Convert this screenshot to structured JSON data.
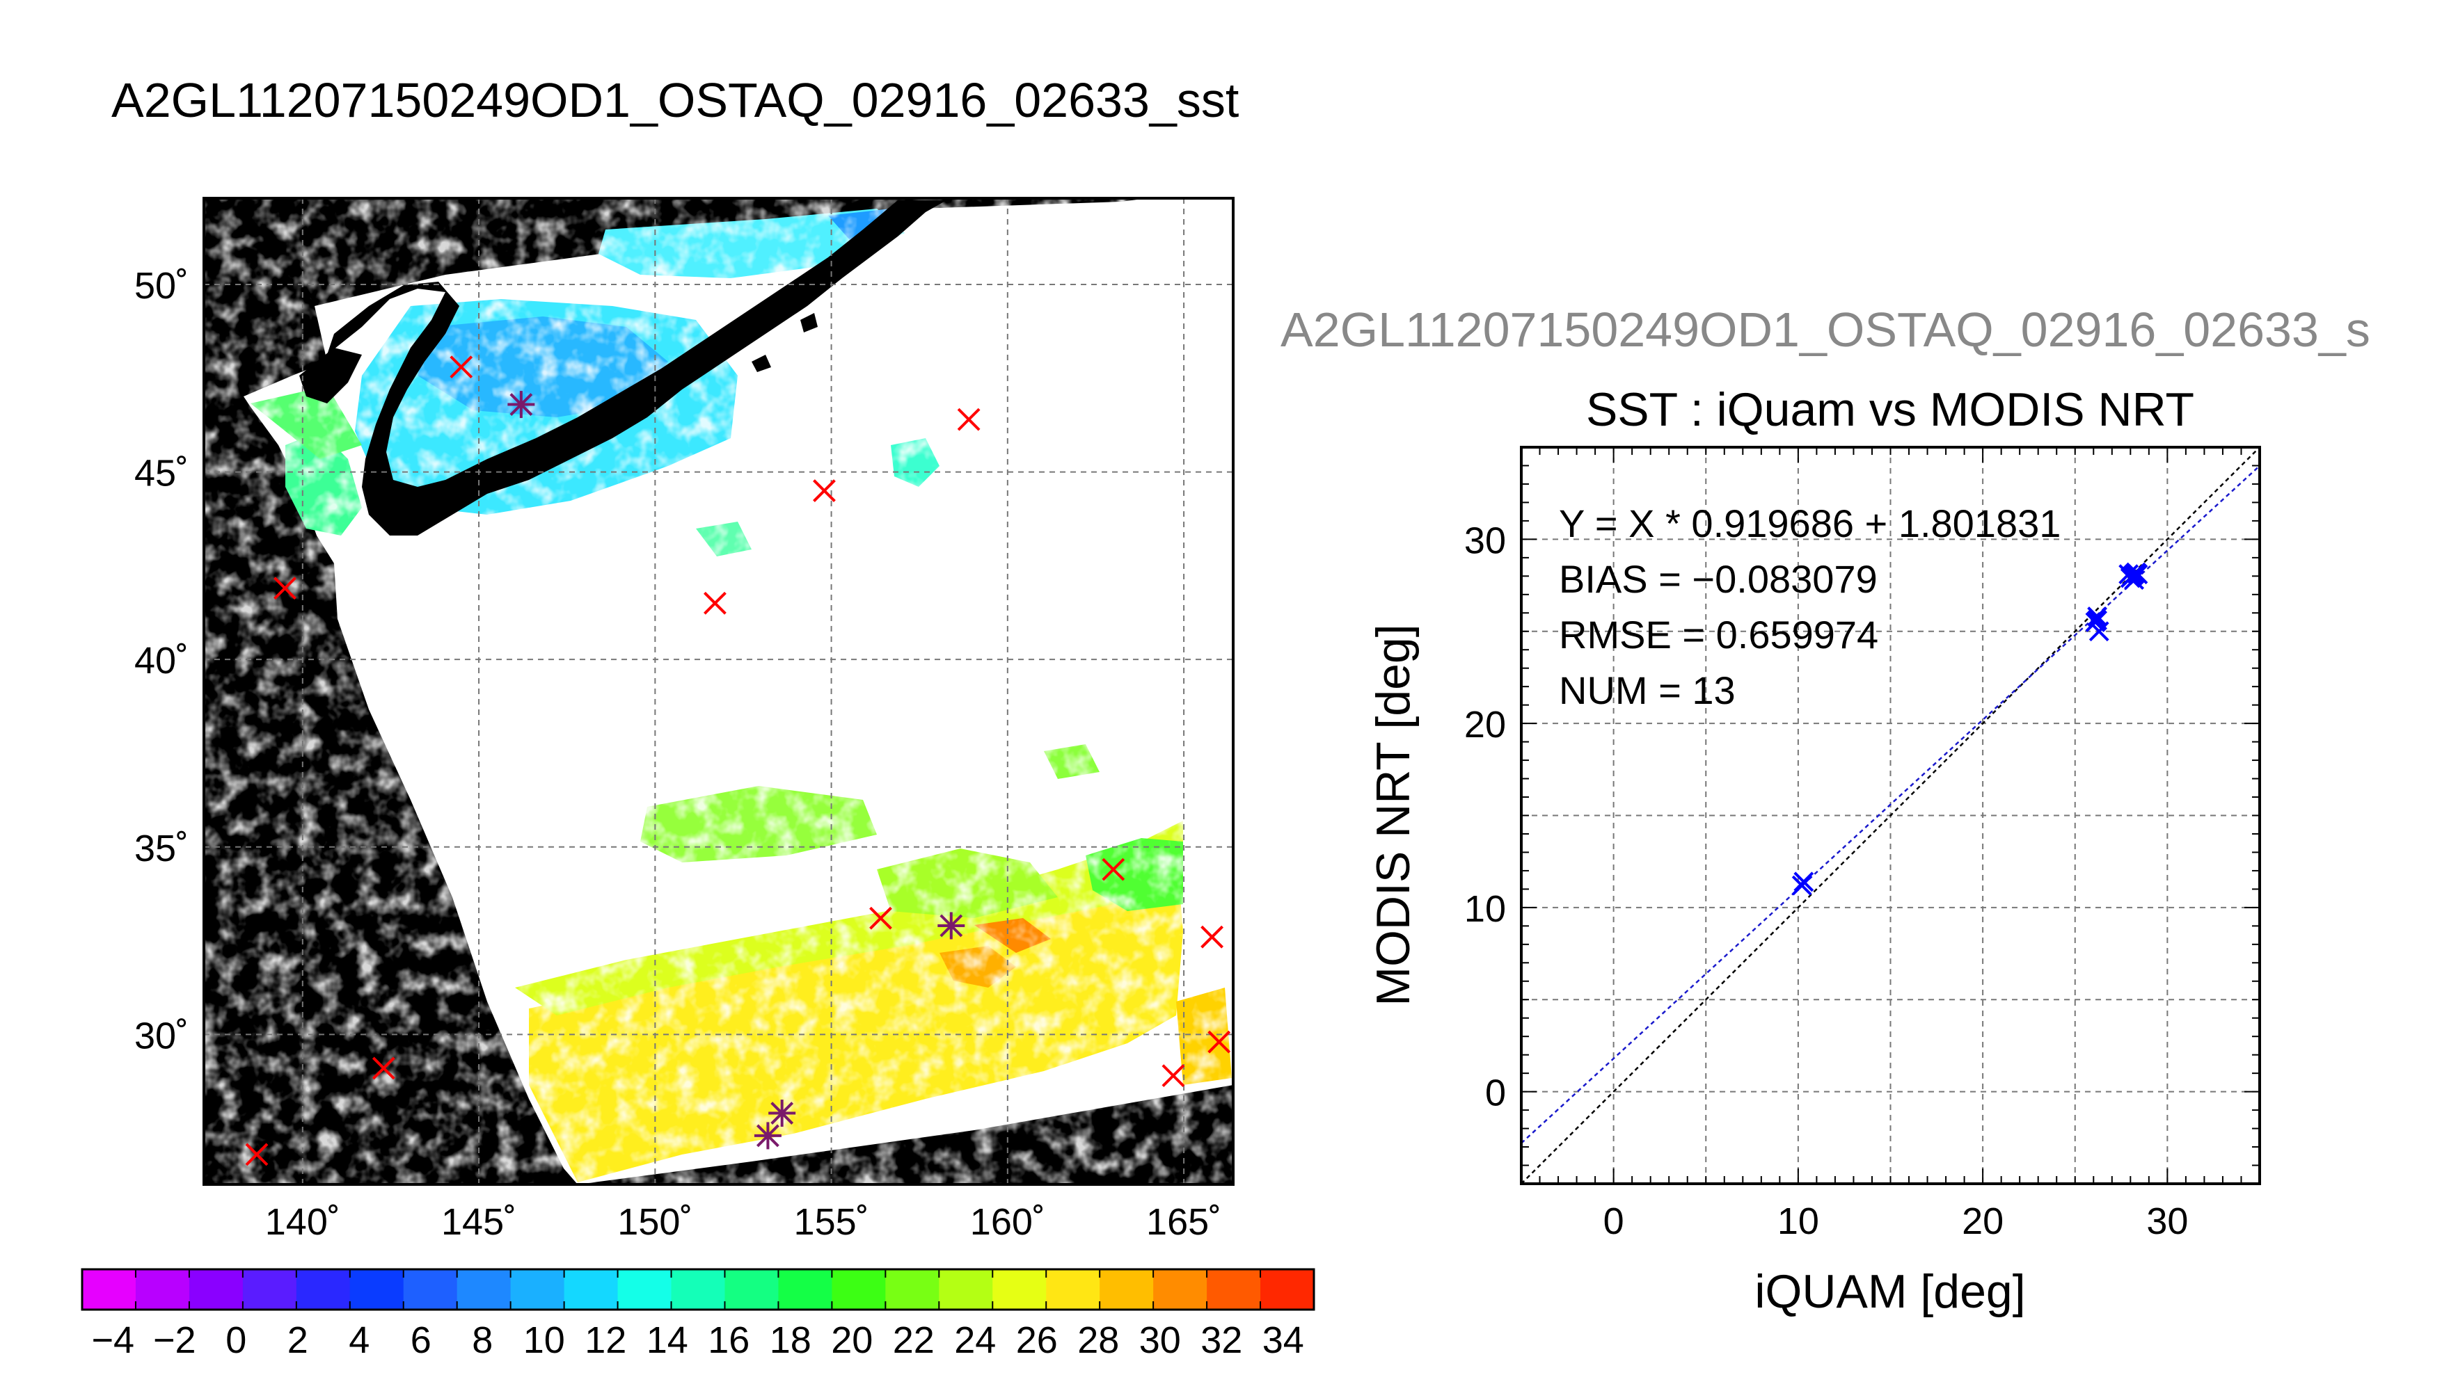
{
  "page": {
    "main_title": "A2GL11207150249OD1_OSTAQ_02916_02633_sst",
    "scatter_header": "A2GL11207150249OD1_OSTAQ_02916_02633_s"
  },
  "chart_data": [
    {
      "type": "heatmap",
      "title": "",
      "xlabel": "",
      "ylabel": "",
      "x_ticks": [
        "140˚",
        "145˚",
        "150˚",
        "155˚",
        "160˚",
        "165˚"
      ],
      "y_ticks": [
        "30˚",
        "35˚",
        "40˚",
        "45˚",
        "50˚"
      ],
      "x_tick_values": [
        140,
        145,
        150,
        155,
        160,
        165
      ],
      "y_tick_values": [
        30,
        35,
        40,
        45,
        50
      ],
      "xlim": [
        137.2,
        166.4
      ],
      "ylim": [
        26.0,
        52.3
      ],
      "grid": true,
      "colorbar": {
        "labels": [
          "−4",
          "−2",
          "0",
          "2",
          "4",
          "6",
          "8",
          "10",
          "12",
          "14",
          "16",
          "18",
          "20",
          "22",
          "24",
          "26",
          "28",
          "30",
          "32",
          "34"
        ],
        "values": [
          -4,
          -2,
          0,
          2,
          4,
          6,
          8,
          10,
          12,
          14,
          16,
          18,
          20,
          22,
          24,
          26,
          28,
          30,
          32,
          34
        ],
        "range": [
          -5,
          35
        ],
        "colors": [
          "#e600ff",
          "#b800ff",
          "#8a00ff",
          "#5a1cff",
          "#2a28ff",
          "#0a3cff",
          "#1e60ff",
          "#1e88ff",
          "#1ab0ff",
          "#14d8ff",
          "#14ffe8",
          "#14ffb8",
          "#14ff82",
          "#14ff46",
          "#3cff14",
          "#78ff14",
          "#b4ff14",
          "#e6ff14",
          "#ffe614",
          "#ffbe00",
          "#ff8c00",
          "#ff5a00",
          "#ff2800"
        ]
      },
      "series": [
        {
          "marker": "x",
          "color": "#ff0000",
          "points": [
            {
              "lon": 144.5,
              "lat": 47.8
            },
            {
              "lon": 139.5,
              "lat": 41.9
            },
            {
              "lon": 151.7,
              "lat": 41.5
            },
            {
              "lon": 154.8,
              "lat": 44.5
            },
            {
              "lon": 158.9,
              "lat": 46.4
            },
            {
              "lon": 142.3,
              "lat": 29.1
            },
            {
              "lon": 138.7,
              "lat": 26.8
            },
            {
              "lon": 156.4,
              "lat": 33.1
            },
            {
              "lon": 163.0,
              "lat": 34.4
            },
            {
              "lon": 165.8,
              "lat": 32.6
            },
            {
              "lon": 166.0,
              "lat": 29.8
            },
            {
              "lon": 164.7,
              "lat": 28.9
            }
          ]
        },
        {
          "marker": "asterisk",
          "color": "#7a1a6a",
          "points": [
            {
              "lon": 146.2,
              "lat": 46.8
            },
            {
              "lon": 158.4,
              "lat": 32.9
            },
            {
              "lon": 153.6,
              "lat": 27.9
            },
            {
              "lon": 153.2,
              "lat": 27.3
            }
          ]
        }
      ]
    },
    {
      "type": "scatter",
      "title": "SST : iQuam vs MODIS NRT",
      "xlabel": "iQUAM [deg]",
      "ylabel": "MODIS NRT [deg]",
      "xlim": [
        -5,
        35
      ],
      "ylim": [
        -5,
        35
      ],
      "x_ticks": [
        0,
        10,
        20,
        30
      ],
      "y_ticks": [
        0,
        10,
        20,
        30
      ],
      "grid": true,
      "annotations": [
        "Y = X * 0.919686 + 1.801831",
        "BIAS = −0.083079",
        "RMSE = 0.659974",
        "NUM = 13"
      ],
      "fit": {
        "slope": 0.919686,
        "intercept": 1.801831,
        "color": "#1a1acc"
      },
      "identity": {
        "color": "#000000"
      },
      "series": [
        {
          "marker": "x",
          "color": "#0000ff",
          "points": [
            {
              "x": 10.3,
              "y": 11.4
            },
            {
              "x": 10.2,
              "y": 11.2
            },
            {
              "x": 26.2,
              "y": 25.8
            },
            {
              "x": 26.1,
              "y": 25.5
            },
            {
              "x": 26.3,
              "y": 25.0
            },
            {
              "x": 26.2,
              "y": 25.6
            },
            {
              "x": 28.1,
              "y": 28.0
            },
            {
              "x": 28.3,
              "y": 28.2
            },
            {
              "x": 28.0,
              "y": 27.9
            },
            {
              "x": 28.4,
              "y": 28.1
            },
            {
              "x": 27.9,
              "y": 28.1
            },
            {
              "x": 28.2,
              "y": 27.8
            },
            {
              "x": 28.2,
              "y": 28.1
            }
          ]
        }
      ]
    }
  ]
}
